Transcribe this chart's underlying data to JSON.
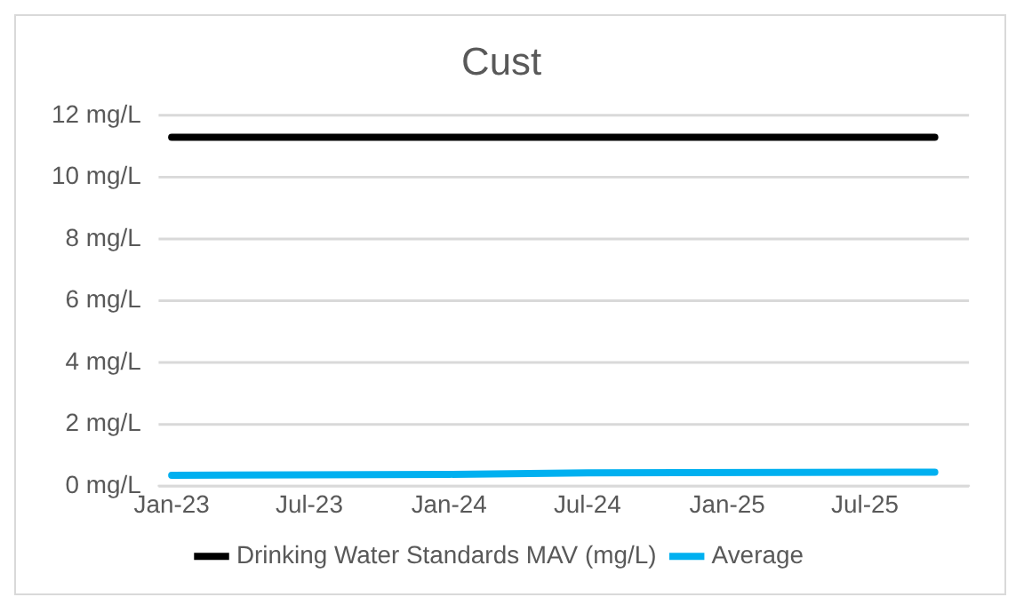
{
  "chart_data": {
    "type": "line",
    "title": "Cust",
    "xlim": [
      "2022-12-15",
      "2025-11-15"
    ],
    "xticks": [
      {
        "value": "2023-01",
        "label": "Jan-23"
      },
      {
        "value": "2023-07",
        "label": "Jul-23"
      },
      {
        "value": "2024-01",
        "label": "Jan-24"
      },
      {
        "value": "2024-07",
        "label": "Jul-24"
      },
      {
        "value": "2025-01",
        "label": "Jan-25"
      },
      {
        "value": "2025-07",
        "label": "Jul-25"
      }
    ],
    "ylim": [
      0,
      12
    ],
    "yticks": [
      {
        "value": 0,
        "label": "0 mg/L"
      },
      {
        "value": 2,
        "label": "2 mg/L"
      },
      {
        "value": 4,
        "label": "4 mg/L"
      },
      {
        "value": 6,
        "label": "6 mg/L"
      },
      {
        "value": 8,
        "label": "8 mg/L"
      },
      {
        "value": 10,
        "label": "10 mg/L"
      },
      {
        "value": 12,
        "label": "12 mg/L"
      }
    ],
    "series": [
      {
        "name": "Drinking Water Standards MAV (mg/L)",
        "color": "#000000",
        "x": [
          "2023-01",
          "2025-10"
        ],
        "values": [
          11.3,
          11.3
        ]
      },
      {
        "name": "Average",
        "color": "#00b0f0",
        "x": [
          "2023-01",
          "2024-01",
          "2024-07",
          "2025-10"
        ],
        "values": [
          0.35,
          0.38,
          0.43,
          0.45
        ]
      }
    ],
    "grid": "y",
    "legend": "bottom",
    "marker": "none",
    "line_style": "solid"
  }
}
